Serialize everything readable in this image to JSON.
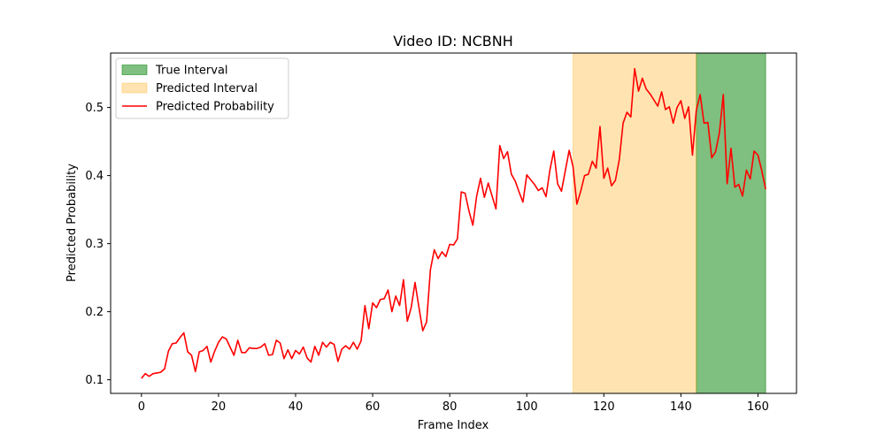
{
  "chart_data": {
    "type": "line",
    "title": "Video ID: NCBNH",
    "xlabel": "Frame Index",
    "ylabel": "Predicted Probability",
    "xlim": [
      -8,
      170
    ],
    "ylim": [
      0.08,
      0.58
    ],
    "xticks": [
      0,
      20,
      40,
      60,
      80,
      100,
      120,
      140,
      160
    ],
    "yticks": [
      0.1,
      0.2,
      0.3,
      0.4,
      0.5
    ],
    "ytick_labels": [
      "0.1",
      "0.2",
      "0.3",
      "0.4",
      "0.5"
    ],
    "grid": false,
    "legend_position": "top-left",
    "legend": [
      {
        "label": "True Interval",
        "kind": "patch",
        "color": "#008000"
      },
      {
        "label": "Predicted Interval",
        "kind": "patch",
        "color": "#ffa500"
      },
      {
        "label": "Predicted Probability",
        "kind": "line",
        "color": "#ff0000"
      }
    ],
    "intervals": [
      {
        "name": "True Interval",
        "start": 144,
        "end": 162,
        "color": "#008000",
        "opacity": 0.5
      },
      {
        "name": "Predicted Interval",
        "start": 112,
        "end": 144,
        "color": "#ffa500",
        "opacity": 0.3
      }
    ],
    "series": [
      {
        "name": "Predicted Probability",
        "color": "#ff0000",
        "x_start": 0,
        "values": [
          0.102,
          0.109,
          0.105,
          0.109,
          0.11,
          0.111,
          0.116,
          0.142,
          0.153,
          0.154,
          0.162,
          0.169,
          0.141,
          0.136,
          0.112,
          0.141,
          0.143,
          0.149,
          0.126,
          0.142,
          0.155,
          0.163,
          0.16,
          0.148,
          0.136,
          0.158,
          0.14,
          0.14,
          0.147,
          0.146,
          0.146,
          0.148,
          0.153,
          0.136,
          0.137,
          0.158,
          0.154,
          0.131,
          0.144,
          0.131,
          0.143,
          0.138,
          0.148,
          0.132,
          0.126,
          0.149,
          0.136,
          0.155,
          0.148,
          0.155,
          0.152,
          0.127,
          0.145,
          0.15,
          0.145,
          0.155,
          0.145,
          0.157,
          0.209,
          0.175,
          0.213,
          0.206,
          0.218,
          0.219,
          0.232,
          0.2,
          0.223,
          0.209,
          0.247,
          0.186,
          0.206,
          0.243,
          0.207,
          0.172,
          0.185,
          0.262,
          0.291,
          0.278,
          0.288,
          0.281,
          0.299,
          0.298,
          0.307,
          0.376,
          0.374,
          0.348,
          0.327,
          0.37,
          0.396,
          0.368,
          0.389,
          0.37,
          0.351,
          0.444,
          0.425,
          0.435,
          0.402,
          0.392,
          0.376,
          0.361,
          0.401,
          0.394,
          0.387,
          0.378,
          0.382,
          0.369,
          0.408,
          0.436,
          0.388,
          0.377,
          0.407,
          0.437,
          0.413,
          0.358,
          0.377,
          0.4,
          0.402,
          0.421,
          0.411,
          0.472,
          0.396,
          0.411,
          0.385,
          0.393,
          0.423,
          0.477,
          0.493,
          0.486,
          0.557,
          0.524,
          0.543,
          0.527,
          0.52,
          0.511,
          0.502,
          0.523,
          0.497,
          0.501,
          0.477,
          0.5,
          0.51,
          0.484,
          0.501,
          0.43,
          0.496,
          0.519,
          0.477,
          0.478,
          0.426,
          0.435,
          0.463,
          0.519,
          0.388,
          0.44,
          0.383,
          0.387,
          0.37,
          0.408,
          0.395,
          0.436,
          0.43,
          0.407,
          0.38
        ]
      }
    ]
  }
}
